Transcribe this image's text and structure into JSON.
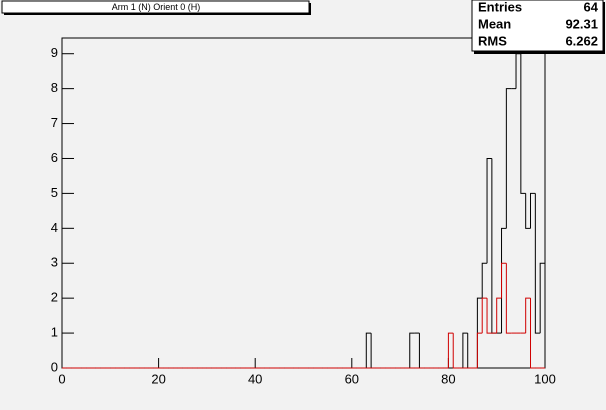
{
  "chart_data": {
    "type": "histogram",
    "title": "Arm 1 (N) Orient 0 (H)",
    "bins": [
      0,
      1,
      2,
      3,
      4,
      5,
      6,
      7,
      8,
      9,
      10,
      11,
      12,
      13,
      14,
      15,
      16,
      17,
      18,
      19,
      20,
      21,
      22,
      23,
      24,
      25,
      26,
      27,
      28,
      29,
      30,
      31,
      32,
      33,
      34,
      35,
      36,
      37,
      38,
      39,
      40,
      41,
      42,
      43,
      44,
      45,
      46,
      47,
      48,
      49,
      50,
      51,
      52,
      53,
      54,
      55,
      56,
      57,
      58,
      59,
      60,
      61,
      62,
      63,
      64,
      65,
      66,
      67,
      68,
      69,
      70,
      71,
      72,
      73,
      74,
      75,
      76,
      77,
      78,
      79,
      80,
      81,
      82,
      83,
      84,
      85,
      86,
      87,
      88,
      89,
      90,
      91,
      92,
      93,
      94,
      95,
      96,
      97,
      98,
      99,
      100
    ],
    "series": [
      {
        "color": "#000000",
        "values": [
          0,
          0,
          0,
          0,
          0,
          0,
          0,
          0,
          0,
          0,
          0,
          0,
          0,
          0,
          0,
          0,
          0,
          0,
          0,
          0,
          0,
          0,
          0,
          0,
          0,
          0,
          0,
          0,
          0,
          0,
          0,
          0,
          0,
          0,
          0,
          0,
          0,
          0,
          0,
          0,
          0,
          0,
          0,
          0,
          0,
          0,
          0,
          0,
          0,
          0,
          0,
          0,
          0,
          0,
          0,
          0,
          0,
          0,
          0,
          0,
          0,
          0,
          0,
          1,
          0,
          0,
          0,
          0,
          0,
          0,
          0,
          0,
          1,
          1,
          0,
          0,
          0,
          0,
          0,
          0,
          0,
          0,
          0,
          1,
          0,
          0,
          2,
          3,
          6,
          1,
          1,
          4,
          8,
          8,
          9,
          5,
          4,
          5,
          1,
          3
        ]
      },
      {
        "color": "#d00000",
        "values": [
          0,
          0,
          0,
          0,
          0,
          0,
          0,
          0,
          0,
          0,
          0,
          0,
          0,
          0,
          0,
          0,
          0,
          0,
          0,
          0,
          0,
          0,
          0,
          0,
          0,
          0,
          0,
          0,
          0,
          0,
          0,
          0,
          0,
          0,
          0,
          0,
          0,
          0,
          0,
          0,
          0,
          0,
          0,
          0,
          0,
          0,
          0,
          0,
          0,
          0,
          0,
          0,
          0,
          0,
          0,
          0,
          0,
          0,
          0,
          0,
          0,
          0,
          0,
          0,
          0,
          0,
          0,
          0,
          0,
          0,
          0,
          0,
          0,
          0,
          0,
          0,
          0,
          0,
          0,
          0,
          1,
          0,
          0,
          0,
          0,
          0,
          1,
          2,
          1,
          1,
          2,
          3,
          1,
          1,
          1,
          1,
          2,
          0,
          0,
          0
        ]
      }
    ],
    "xlim": [
      0,
      100
    ],
    "xticks": [
      0,
      20,
      40,
      60,
      80,
      100
    ],
    "ylim": [
      0,
      9.45
    ],
    "yticks": [
      0,
      1,
      2,
      3,
      4,
      5,
      6,
      7,
      8,
      9
    ],
    "stats": [
      {
        "label": "Entries",
        "value": 64
      },
      {
        "label": "Mean",
        "value": 92.31
      },
      {
        "label": "RMS",
        "value": 6.262
      }
    ]
  }
}
